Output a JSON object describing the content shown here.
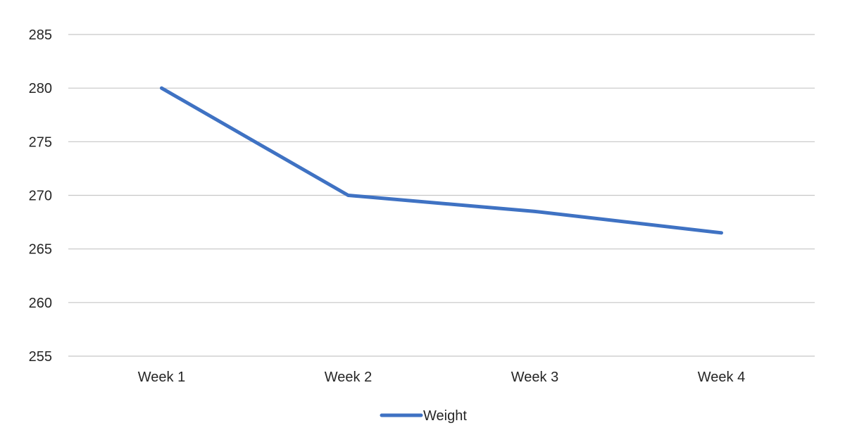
{
  "chart_data": {
    "type": "line",
    "title": "",
    "xlabel": "",
    "ylabel": "",
    "categories": [
      "Week 1",
      "Week 2",
      "Week 3",
      "Week 4"
    ],
    "series": [
      {
        "name": "Weight",
        "values": [
          280,
          270,
          268.5,
          266.5
        ],
        "color": "#3f72c3"
      }
    ],
    "ylim": [
      255,
      285
    ],
    "yticks": [
      255,
      260,
      265,
      270,
      275,
      280,
      285
    ],
    "grid": true,
    "gridColor": "#c6c6c6",
    "legend": {
      "position": "bottom",
      "entries": [
        "Weight"
      ]
    }
  }
}
